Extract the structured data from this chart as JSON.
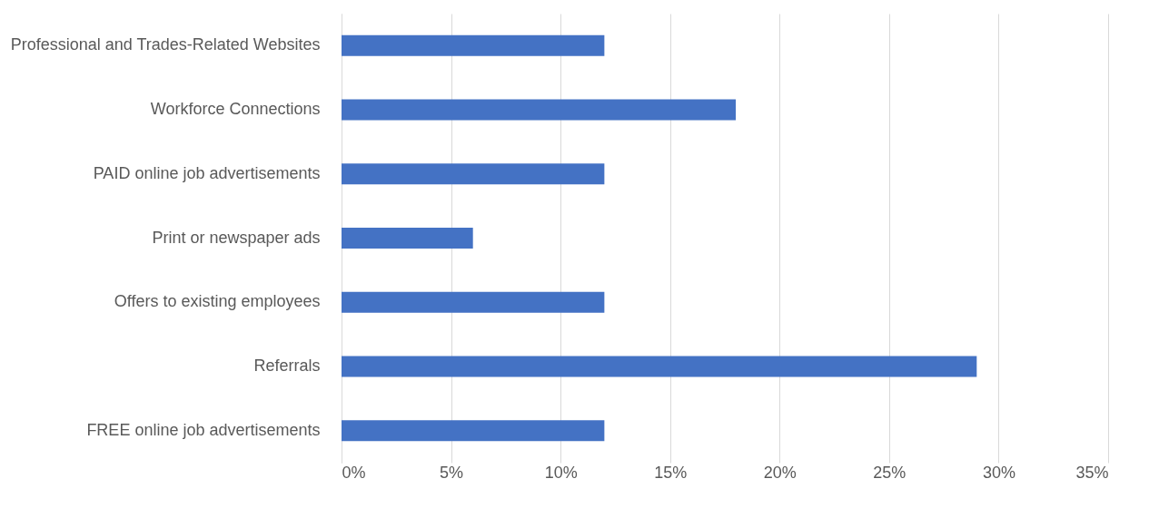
{
  "chart_data": {
    "type": "bar",
    "orientation": "horizontal",
    "categories": [
      "Professional and Trades-Related Websites",
      "Workforce Connections",
      "PAID online job advertisements",
      "Print or newspaper ads",
      "Offers to existing employees",
      "Referrals",
      "FREE online job advertisements"
    ],
    "values": [
      12,
      18,
      12,
      6,
      12,
      29,
      12
    ],
    "color": "#4472c4",
    "xlim": [
      0,
      35
    ],
    "xticks": [
      {
        "value": 0,
        "label": "0%"
      },
      {
        "value": 5,
        "label": "5%"
      },
      {
        "value": 10,
        "label": "10%"
      },
      {
        "value": 15,
        "label": "15%"
      },
      {
        "value": 20,
        "label": "20%"
      },
      {
        "value": 25,
        "label": "25%"
      },
      {
        "value": 30,
        "label": "30%"
      },
      {
        "value": 35,
        "label": "35%"
      }
    ],
    "grid": "x"
  }
}
